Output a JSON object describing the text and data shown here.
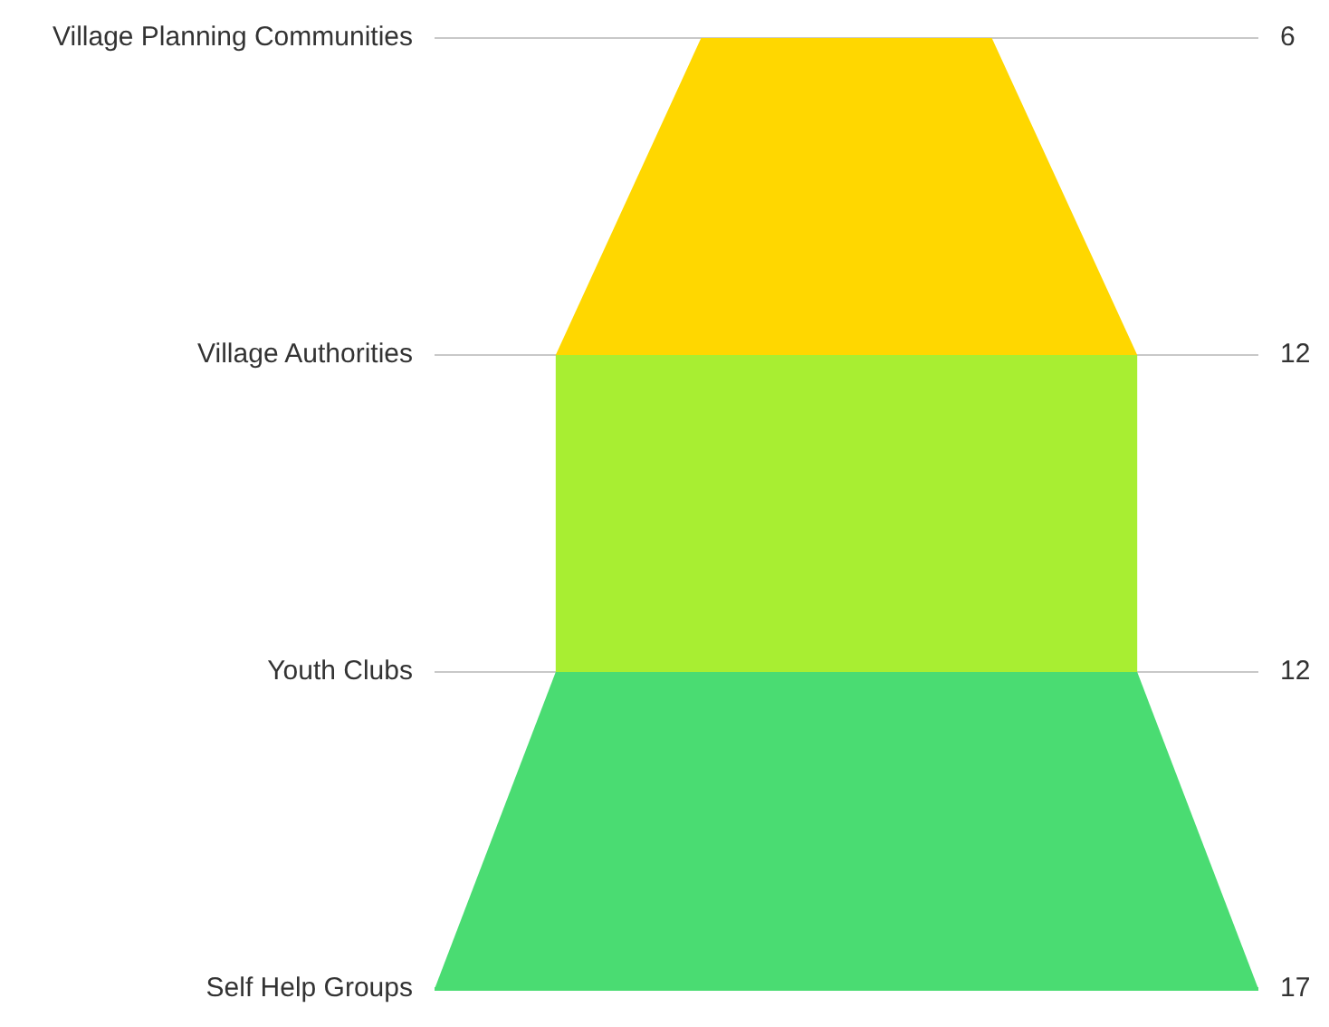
{
  "chart_data": {
    "type": "other",
    "categories": [
      "Village Planning Communities",
      "Village Authorities",
      "Youth Clubs",
      "Self Help Groups"
    ],
    "values": [
      6,
      12,
      12,
      17
    ],
    "colors": [
      "#ffd700",
      "#a8ee32",
      "#4adc72",
      "#4adc72"
    ],
    "data_labels": true
  }
}
